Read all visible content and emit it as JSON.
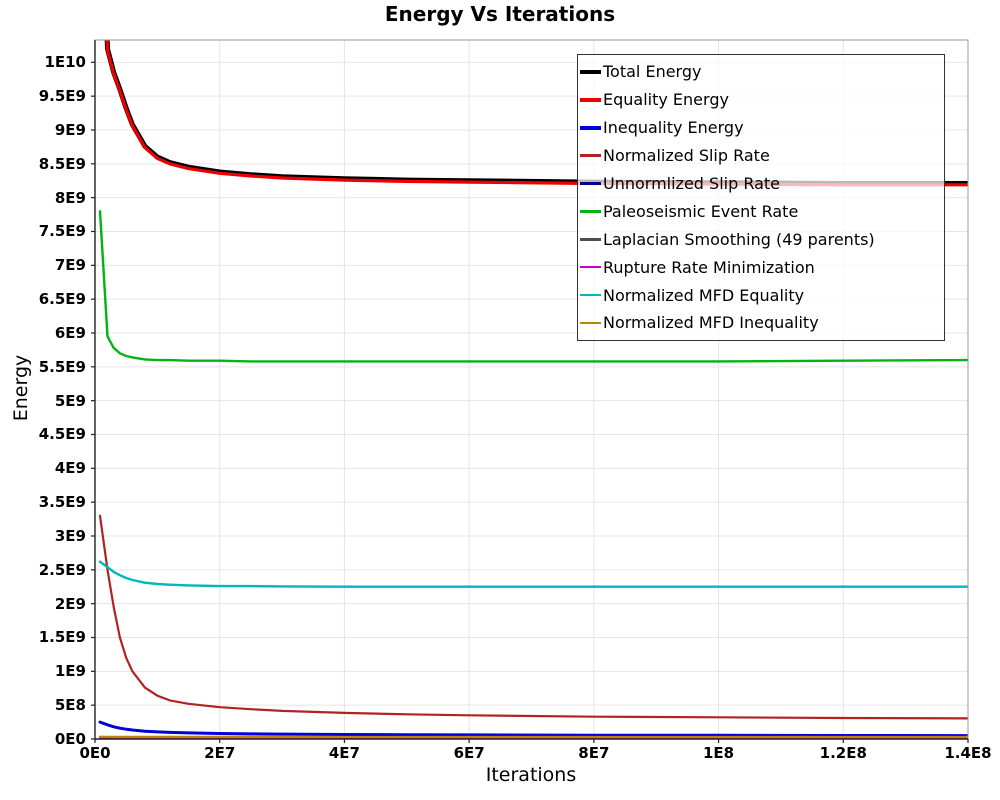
{
  "chart_data": {
    "type": "line",
    "title": "Energy Vs Iterations",
    "xlabel": "Iterations",
    "ylabel": "Energy",
    "grid": true,
    "legend_position": "top-right-inside",
    "background_color": "#ffffff",
    "grid_color": "#e5e5e5",
    "xlim": [
      0,
      140000000
    ],
    "ylim": [
      0,
      10330000000
    ],
    "x_tick_values": [
      0,
      20000000.0,
      40000000.0,
      60000000.0,
      80000000.0,
      100000000.0,
      120000000.0,
      140000000.0
    ],
    "x_tick_labels": [
      "0E0",
      "2E7",
      "4E7",
      "6E7",
      "8E7",
      "1E8",
      "1.2E8",
      "1.4E8"
    ],
    "y_tick_values": [
      0,
      500000000.0,
      1000000000.0,
      1500000000.0,
      2000000000.0,
      2500000000.0,
      3000000000.0,
      3500000000.0,
      4000000000.0,
      4500000000.0,
      5000000000.0,
      5500000000.0,
      6000000000.0,
      6500000000.0,
      7000000000.0,
      7500000000.0,
      8000000000.0,
      8500000000.0,
      9000000000.0,
      9500000000.0,
      10000000000.0
    ],
    "y_tick_labels": [
      "0E0",
      "5E8",
      "1E9",
      "1.5E9",
      "2E9",
      "2.5E9",
      "3E9",
      "3.5E9",
      "4E9",
      "4.5E9",
      "5E9",
      "5.5E9",
      "6E9",
      "6.5E9",
      "7E9",
      "7.5E9",
      "8E9",
      "8.5E9",
      "9E9",
      "9.5E9",
      "1E10"
    ],
    "x": [
      800000.0,
      2000000.0,
      3000000.0,
      4000000.0,
      5000000.0,
      6000000.0,
      8000000.0,
      10000000.0,
      12000000.0,
      15000000.0,
      20000000.0,
      25000000.0,
      30000000.0,
      40000000.0,
      50000000.0,
      60000000.0,
      80000000.0,
      100000000.0,
      120000000.0,
      140000000.0
    ],
    "series": [
      {
        "name": "Total Energy",
        "color": "#000000",
        "lw": 5,
        "y": [
          13500000000.0,
          10200000000.0,
          9850000000.0,
          9600000000.0,
          9320000000.0,
          9080000000.0,
          8760000000.0,
          8600000000.0,
          8520000000.0,
          8450000000.0,
          8380000000.0,
          8340000000.0,
          8310000000.0,
          8280000000.0,
          8260000000.0,
          8250000000.0,
          8230000000.0,
          8220000000.0,
          8210000000.0,
          8210000000.0
        ]
      },
      {
        "name": "Equality Energy",
        "color": "#ee0000",
        "lw": 3.2,
        "y": [
          13480000000.0,
          10180000000.0,
          9830000000.0,
          9580000000.0,
          9300000000.0,
          9060000000.0,
          8740000000.0,
          8580000000.0,
          8500000000.0,
          8430000000.0,
          8360000000.0,
          8320000000.0,
          8290000000.0,
          8260000000.0,
          8240000000.0,
          8230000000.0,
          8210000000.0,
          8200000000.0,
          8190000000.0,
          8190000000.0
        ]
      },
      {
        "name": "Inequality Energy",
        "color": "#0000dd",
        "lw": 3,
        "y": [
          250000000.0,
          210000000.0,
          180000000.0,
          160000000.0,
          145000000.0,
          133000000.0,
          116000000.0,
          105000000.0,
          97000000.0,
          90000000.0,
          82000000.0,
          76000000.0,
          72000000.0,
          66000000.0,
          62000000.0,
          60000000.0,
          56000000.0,
          54000000.0,
          52000000.0,
          50000000.0
        ]
      },
      {
        "name": "Normalized Slip Rate",
        "color": "#b22222",
        "lw": 2.2,
        "y": [
          3300000000.0,
          2500000000.0,
          1950000000.0,
          1500000000.0,
          1200000000.0,
          1000000000.0,
          760000000.0,
          640000000.0,
          570000000.0,
          520000000.0,
          470000000.0,
          440000000.0,
          415000000.0,
          385000000.0,
          365000000.0,
          350000000.0,
          330000000.0,
          320000000.0,
          310000000.0,
          305000000.0
        ]
      },
      {
        "name": "Unnormlized Slip Rate",
        "color": "#00008b",
        "lw": 2.2,
        "y": [
          15000000.0,
          14000000.0,
          13500000.0,
          13000000.0,
          13000000.0,
          12500000.0,
          12000000.0,
          12000000.0,
          12000000.0,
          11500000.0,
          11500000.0,
          11000000.0,
          11000000.0,
          11000000.0,
          10500000.0,
          10500000.0,
          10000000.0,
          10000000.0,
          10000000.0,
          10000000.0
        ]
      },
      {
        "name": "Paleoseismic Event Rate",
        "color": "#00b511",
        "lw": 2.4,
        "y": [
          7800000000.0,
          5950000000.0,
          5780000000.0,
          5700000000.0,
          5660000000.0,
          5640000000.0,
          5610000000.0,
          5600000000.0,
          5600000000.0,
          5590000000.0,
          5590000000.0,
          5580000000.0,
          5580000000.0,
          5580000000.0,
          5580000000.0,
          5580000000.0,
          5580000000.0,
          5580000000.0,
          5590000000.0,
          5600000000.0
        ]
      },
      {
        "name": "Laplacian Smoothing (49 parents)",
        "color": "#4d4d4d",
        "lw": 2.2,
        "y": [
          8000000.0,
          8000000.0,
          8000000.0,
          8000000.0,
          8000000.0,
          8000000.0,
          8000000.0,
          8000000.0,
          8000000.0,
          8000000.0,
          8000000.0,
          8000000.0,
          8000000.0,
          8000000.0,
          8000000.0,
          8000000.0,
          8000000.0,
          8000000.0,
          8000000.0,
          8000000.0
        ]
      },
      {
        "name": "Rupture Rate Minimization",
        "color": "#c800c8",
        "lw": 2.2,
        "y": [
          4000000.0,
          4000000.0,
          4000000.0,
          4000000.0,
          4000000.0,
          4000000.0,
          4000000.0,
          4000000.0,
          4000000.0,
          4000000.0,
          4000000.0,
          4000000.0,
          4000000.0,
          4000000.0,
          4000000.0,
          4000000.0,
          4000000.0,
          4000000.0,
          4000000.0,
          4000000.0
        ]
      },
      {
        "name": "Normalized MFD Equality",
        "color": "#00b7bd",
        "lw": 2.4,
        "y": [
          2620000000.0,
          2540000000.0,
          2470000000.0,
          2420000000.0,
          2380000000.0,
          2350000000.0,
          2310000000.0,
          2290000000.0,
          2280000000.0,
          2270000000.0,
          2260000000.0,
          2260000000.0,
          2255000000.0,
          2250000000.0,
          2250000000.0,
          2250000000.0,
          2250000000.0,
          2250000000.0,
          2250000000.0,
          2250000000.0
        ]
      },
      {
        "name": "Normalized MFD Inequality",
        "color": "#b8860b",
        "lw": 2.4,
        "y": [
          32000000.0,
          31000000.0,
          31000000.0,
          30000000.0,
          30000000.0,
          30000000.0,
          30000000.0,
          30000000.0,
          30000000.0,
          29000000.0,
          29000000.0,
          29000000.0,
          29000000.0,
          28000000.0,
          28000000.0,
          28000000.0,
          28000000.0,
          28000000.0,
          28000000.0,
          28000000.0
        ]
      }
    ]
  }
}
